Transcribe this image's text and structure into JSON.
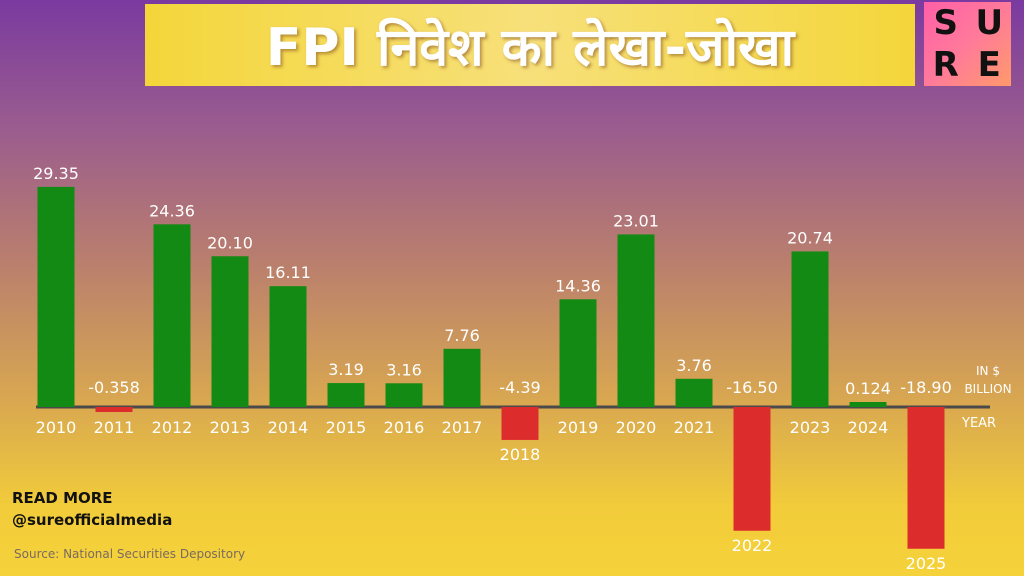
{
  "header": {
    "title": "FPI निवेश का लेखा-जोखा"
  },
  "logo": {
    "letters": [
      "S",
      "U",
      "R",
      "E"
    ]
  },
  "footer": {
    "read_more": "READ MORE",
    "handle": "@sureofficialmedia",
    "source": "Source: National Securities Depository"
  },
  "colors": {
    "positive": "#138a13",
    "negative": "#dd2c2c",
    "axis": "#4a4a4a",
    "label": "#ffffff"
  },
  "chart_data": {
    "type": "bar",
    "title": "FPI निवेश का लेखा-जोखा",
    "unit_label": [
      "IN $",
      "BILLION"
    ],
    "xlabel": "YEAR",
    "categories": [
      "2010",
      "2011",
      "2012",
      "2013",
      "2014",
      "2015",
      "2016",
      "2017",
      "2018",
      "2019",
      "2020",
      "2021",
      "2022",
      "2023",
      "2024",
      "2025"
    ],
    "values": [
      29.35,
      -0.358,
      24.36,
      20.1,
      16.11,
      3.19,
      3.16,
      7.76,
      -4.39,
      14.36,
      23.01,
      3.76,
      -16.5,
      20.74,
      0.124,
      -18.9
    ],
    "value_labels": [
      "29.35",
      "-0.358",
      "24.36",
      "20.10",
      "16.11",
      "3.19",
      "3.16",
      "7.76",
      "-4.39",
      "14.36",
      "23.01",
      "3.76",
      "-16.50",
      "20.74",
      "0.124",
      "-18.90"
    ],
    "ylim": [
      -19,
      30
    ],
    "grid": false,
    "legend": "none"
  }
}
